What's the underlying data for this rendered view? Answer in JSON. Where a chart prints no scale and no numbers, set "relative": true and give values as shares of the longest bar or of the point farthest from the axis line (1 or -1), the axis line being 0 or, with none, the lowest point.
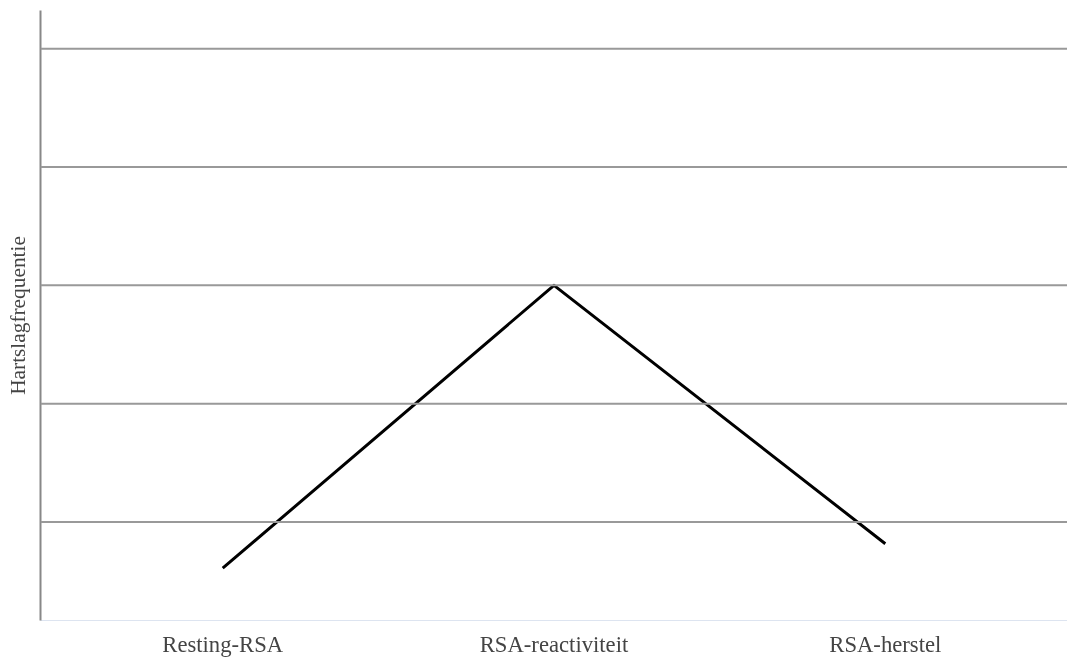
{
  "chart_data": {
    "type": "line",
    "relative": true,
    "ylabel": "Hartslagfrequentie",
    "categories": [
      "Resting-RSA",
      "RSA-reactiviteit",
      "RSA-herstel"
    ],
    "series": [
      {
        "color": "#000000",
        "values": [
          0.156,
          1,
          0.229
        ]
      }
    ],
    "ref_lines": [
      {
        "axis": "y",
        "value": 0.294,
        "color": "#999999"
      },
      {
        "axis": "y",
        "value": 0.647,
        "color": "#999999"
      },
      {
        "axis": "y",
        "value": 1,
        "color": "#999999"
      },
      {
        "axis": "y",
        "value": 1.353,
        "color": "#999999"
      },
      {
        "axis": "y",
        "value": 1.706,
        "color": "#999999"
      }
    ],
    "marker": "none",
    "line_style": "solid"
  }
}
